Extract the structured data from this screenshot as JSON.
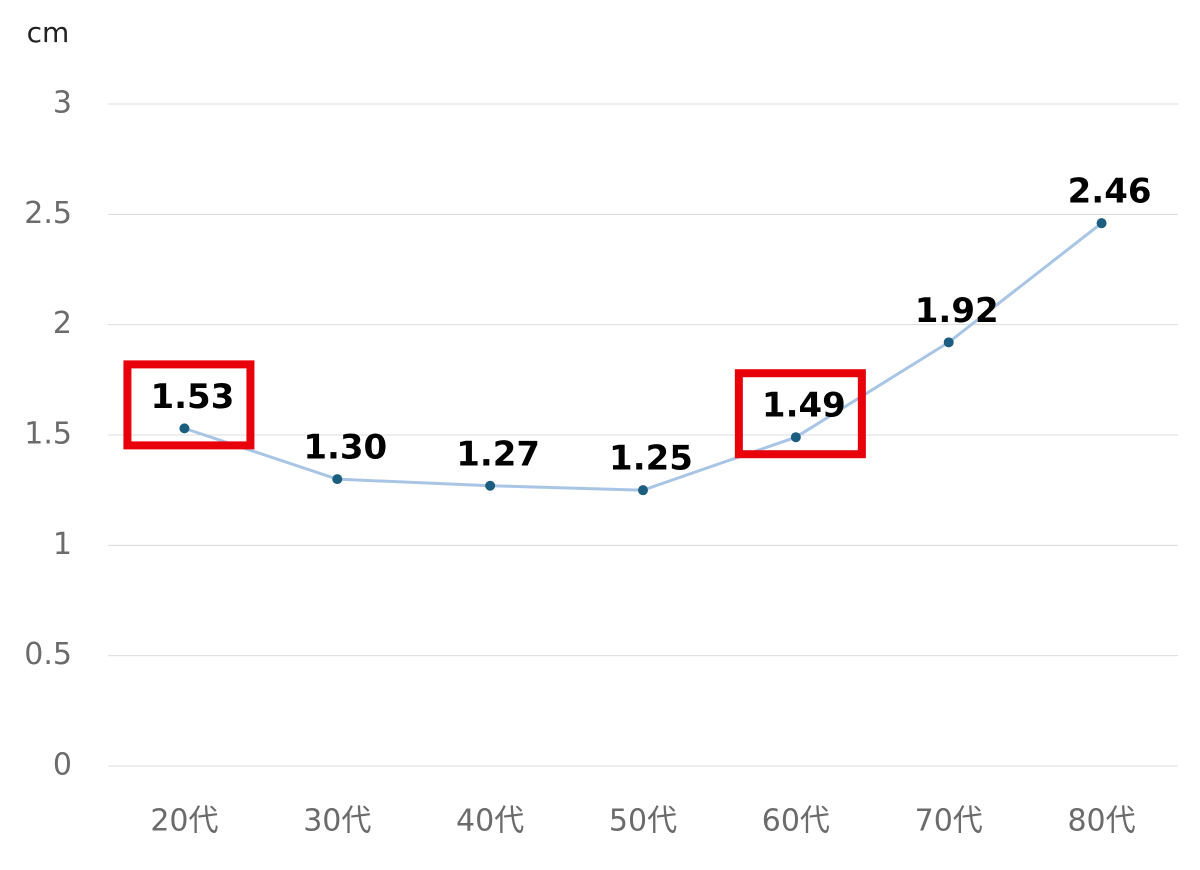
{
  "chart_data": {
    "type": "line",
    "y_label": "cm",
    "categories": [
      "20代",
      "30代",
      "40代",
      "50代",
      "60代",
      "70代",
      "80代"
    ],
    "series": [
      {
        "name": "cm",
        "color": "#a9c5e6",
        "marker_color": "#1b5e80",
        "values": [
          1.53,
          1.3,
          1.27,
          1.25,
          1.49,
          1.92,
          2.46
        ],
        "value_labels": [
          "1.53",
          "1.30",
          "1.27",
          "1.25",
          "1.49",
          "1.92",
          "2.46"
        ]
      }
    ],
    "ylim": [
      0,
      3
    ],
    "yticks": [
      0,
      0.5,
      1,
      1.5,
      2,
      2.5,
      3
    ],
    "grid": true,
    "highlights": [
      0,
      4
    ],
    "highlight_color": "#e8000b"
  }
}
